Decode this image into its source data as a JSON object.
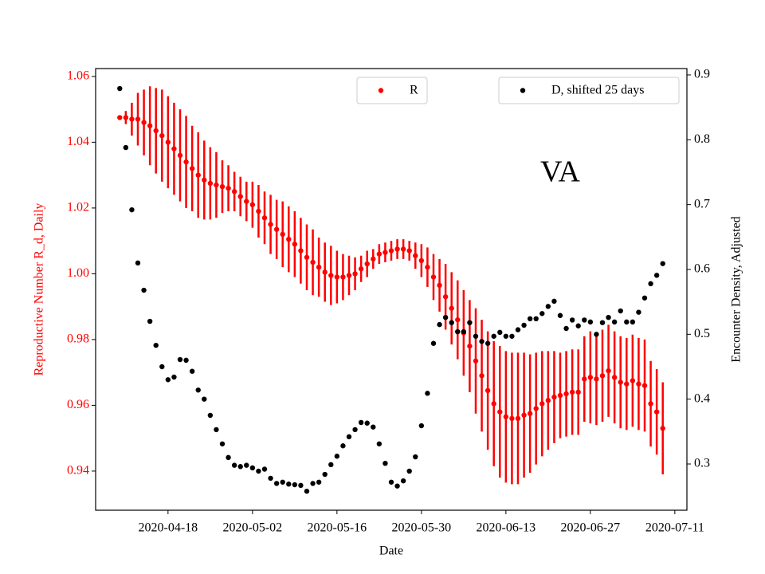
{
  "chart_data": {
    "type": "errorbar-scatter",
    "annotation": "VA",
    "x_label": "Date",
    "y_label": "Reproductive Number R_d, Daily",
    "y2_label": "Encounter Density, Adjusted",
    "xlim": [
      "2020-04-06",
      "2020-07-13"
    ],
    "xticks": [
      "2020-04-18",
      "2020-05-02",
      "2020-05-16",
      "2020-05-30",
      "2020-06-13",
      "2020-06-27",
      "2020-07-11"
    ],
    "ylim": [
      0.9281,
      1.0624
    ],
    "yticks": [
      0.94,
      0.96,
      0.98,
      {
        "value": 1,
        "label": "1.00"
      },
      1.02,
      1.04,
      1.06
    ],
    "y2lim": [
      0.2287,
      0.9098
    ],
    "y2ticks": [
      0.3,
      0.4,
      0.5,
      0.6,
      0.7,
      0.8,
      0.9
    ],
    "x": [
      "2020-04-10",
      "2020-04-11",
      "2020-04-12",
      "2020-04-13",
      "2020-04-14",
      "2020-04-15",
      "2020-04-16",
      "2020-04-17",
      "2020-04-18",
      "2020-04-19",
      "2020-04-20",
      "2020-04-21",
      "2020-04-22",
      "2020-04-23",
      "2020-04-24",
      "2020-04-25",
      "2020-04-26",
      "2020-04-27",
      "2020-04-28",
      "2020-04-29",
      "2020-04-30",
      "2020-05-01",
      "2020-05-02",
      "2020-05-03",
      "2020-05-04",
      "2020-05-05",
      "2020-05-06",
      "2020-05-07",
      "2020-05-08",
      "2020-05-09",
      "2020-05-10",
      "2020-05-11",
      "2020-05-12",
      "2020-05-13",
      "2020-05-14",
      "2020-05-15",
      "2020-05-16",
      "2020-05-17",
      "2020-05-18",
      "2020-05-19",
      "2020-05-20",
      "2020-05-21",
      "2020-05-22",
      "2020-05-23",
      "2020-05-24",
      "2020-05-25",
      "2020-05-26",
      "2020-05-27",
      "2020-05-28",
      "2020-05-29",
      "2020-05-30",
      "2020-05-31",
      "2020-06-01",
      "2020-06-02",
      "2020-06-03",
      "2020-06-04",
      "2020-06-05",
      "2020-06-06",
      "2020-06-07",
      "2020-06-08",
      "2020-06-09",
      "2020-06-10",
      "2020-06-11",
      "2020-06-12",
      "2020-06-13",
      "2020-06-14",
      "2020-06-15",
      "2020-06-16",
      "2020-06-17",
      "2020-06-18",
      "2020-06-19",
      "2020-06-20",
      "2020-06-21",
      "2020-06-22",
      "2020-06-23",
      "2020-06-24",
      "2020-06-25",
      "2020-06-26",
      "2020-06-27",
      "2020-06-28",
      "2020-06-29",
      "2020-06-30",
      "2020-07-01",
      "2020-07-02",
      "2020-07-03",
      "2020-07-04",
      "2020-07-05",
      "2020-07-06",
      "2020-07-07",
      "2020-07-08",
      "2020-07-09"
    ],
    "series": [
      {
        "name": "R",
        "color": "#ff0000",
        "axis": "y",
        "values": [
          1.0475,
          1.0475,
          1.047,
          1.047,
          1.046,
          1.045,
          1.0435,
          1.042,
          1.04,
          1.038,
          1.036,
          1.034,
          1.032,
          1.03,
          1.0285,
          1.0275,
          1.027,
          1.0265,
          1.026,
          1.025,
          1.0235,
          1.022,
          1.021,
          1.019,
          1.017,
          1.015,
          1.0135,
          1.012,
          1.0105,
          1.009,
          1.007,
          1.005,
          1.0035,
          1.002,
          1.0005,
          0.9995,
          0.999,
          0.999,
          0.9995,
          1.0,
          1.0015,
          1.003,
          1.0045,
          1.006,
          1.0065,
          1.007,
          1.0075,
          1.0075,
          1.007,
          1.0055,
          1.004,
          1.002,
          0.999,
          0.9965,
          0.993,
          0.9895,
          0.986,
          0.982,
          0.978,
          0.9735,
          0.969,
          0.9645,
          0.9605,
          0.958,
          0.9565,
          0.956,
          0.956,
          0.957,
          0.9575,
          0.959,
          0.9605,
          0.9615,
          0.9625,
          0.963,
          0.9635,
          0.964,
          0.964,
          0.968,
          0.9685,
          0.968,
          0.969,
          0.9705,
          0.9685,
          0.967,
          0.9665,
          0.9675,
          0.9665,
          0.966,
          0.9605,
          0.958,
          0.953
        ],
        "errors": [
          0,
          0.002,
          0.005,
          0.008,
          0.01,
          0.012,
          0.013,
          0.014,
          0.014,
          0.014,
          0.014,
          0.014,
          0.013,
          0.013,
          0.012,
          0.011,
          0.01,
          0.008,
          0.007,
          0.006,
          0.006,
          0.006,
          0.007,
          0.008,
          0.008,
          0.009,
          0.009,
          0.01,
          0.01,
          0.01,
          0.01,
          0.01,
          0.01,
          0.009,
          0.009,
          0.009,
          0.008,
          0.007,
          0.006,
          0.005,
          0.004,
          0.004,
          0.003,
          0.003,
          0.003,
          0.003,
          0.003,
          0.003,
          0.003,
          0.004,
          0.005,
          0.006,
          0.007,
          0.008,
          0.01,
          0.011,
          0.012,
          0.013,
          0.014,
          0.016,
          0.017,
          0.018,
          0.019,
          0.02,
          0.02,
          0.02,
          0.02,
          0.019,
          0.018,
          0.017,
          0.016,
          0.015,
          0.014,
          0.013,
          0.013,
          0.013,
          0.013,
          0.013,
          0.014,
          0.014,
          0.014,
          0.014,
          0.014,
          0.014,
          0.014,
          0.014,
          0.014,
          0.014,
          0.013,
          0.013,
          0.014
        ]
      },
      {
        "name": "D, shifted 25 days",
        "color": "#000000",
        "axis": "y2",
        "values": [
          0.879,
          0.788,
          0.692,
          0.61,
          0.568,
          0.52,
          0.483,
          0.45,
          0.43,
          0.434,
          0.461,
          0.46,
          0.443,
          0.414,
          0.4,
          0.375,
          0.353,
          0.331,
          0.31,
          0.298,
          0.296,
          0.298,
          0.294,
          0.289,
          0.292,
          0.278,
          0.27,
          0.272,
          0.269,
          0.268,
          0.267,
          0.258,
          0.27,
          0.272,
          0.284,
          0.299,
          0.312,
          0.328,
          0.342,
          0.353,
          0.364,
          0.363,
          0.357,
          0.331,
          0.301,
          0.272,
          0.266,
          0.274,
          0.289,
          0.311,
          0.359,
          0.409,
          0.486,
          0.515,
          0.526,
          0.518,
          0.504,
          0.504,
          0.518,
          0.497,
          0.489,
          0.486,
          0.497,
          0.503,
          0.497,
          0.497,
          0.507,
          0.514,
          0.524,
          0.524,
          0.532,
          0.543,
          0.551,
          0.529,
          0.509,
          0.522,
          0.513,
          0.522,
          0.519,
          0.5,
          0.518,
          0.526,
          0.519,
          0.536,
          0.519,
          0.519,
          0.534,
          0.556,
          0.578,
          0.591,
          0.609
        ]
      }
    ]
  }
}
